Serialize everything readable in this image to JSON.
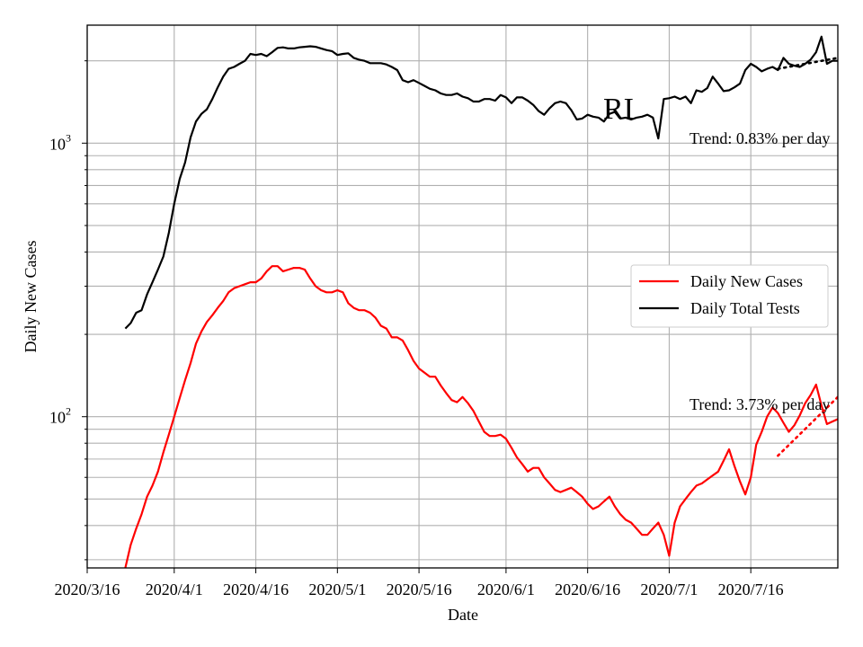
{
  "chart_data": {
    "type": "line",
    "title": "RI",
    "xlabel": "Date",
    "ylabel": "Daily New Cases",
    "yscale": "log",
    "ylim": [
      28,
      2700
    ],
    "xlim": [
      "2020-03-16",
      "2020-08-01"
    ],
    "x_ticks": [
      "2020/3/16",
      "2020/4/1",
      "2020/4/16",
      "2020/5/1",
      "2020/5/16",
      "2020/6/1",
      "2020/6/16",
      "2020/7/1",
      "2020/7/16"
    ],
    "y_ticks": [
      {
        "label": "10",
        "exp": "2",
        "value": 100
      },
      {
        "label": "10",
        "exp": "3",
        "value": 1000
      }
    ],
    "grid": true,
    "legend": {
      "placement": "center-right",
      "entries": [
        {
          "label": "Daily New Cases",
          "color": "#ff0000"
        },
        {
          "label": "Daily Total Tests",
          "color": "#000000"
        }
      ]
    },
    "annotations": [
      {
        "text": "Trend: 0.83% per day",
        "series": "Daily Total Tests"
      },
      {
        "text": "Trend: 3.73% per day",
        "series": "Daily New Cases"
      }
    ],
    "series": [
      {
        "name": "Daily New Cases",
        "color": "#ff0000",
        "x": [
          "2020-03-23",
          "2020-03-24",
          "2020-03-25",
          "2020-03-26",
          "2020-03-27",
          "2020-03-28",
          "2020-03-29",
          "2020-03-30",
          "2020-03-31",
          "2020-04-01",
          "2020-04-02",
          "2020-04-03",
          "2020-04-04",
          "2020-04-05",
          "2020-04-06",
          "2020-04-07",
          "2020-04-08",
          "2020-04-09",
          "2020-04-10",
          "2020-04-11",
          "2020-04-12",
          "2020-04-13",
          "2020-04-14",
          "2020-04-15",
          "2020-04-16",
          "2020-04-17",
          "2020-04-18",
          "2020-04-19",
          "2020-04-20",
          "2020-04-21",
          "2020-04-22",
          "2020-04-23",
          "2020-04-24",
          "2020-04-25",
          "2020-04-26",
          "2020-04-27",
          "2020-04-28",
          "2020-04-29",
          "2020-04-30",
          "2020-05-01",
          "2020-05-02",
          "2020-05-03",
          "2020-05-04",
          "2020-05-05",
          "2020-05-06",
          "2020-05-07",
          "2020-05-08",
          "2020-05-09",
          "2020-05-10",
          "2020-05-11",
          "2020-05-12",
          "2020-05-13",
          "2020-05-14",
          "2020-05-15",
          "2020-05-16",
          "2020-05-17",
          "2020-05-18",
          "2020-05-19",
          "2020-05-20",
          "2020-05-21",
          "2020-05-22",
          "2020-05-23",
          "2020-05-24",
          "2020-05-25",
          "2020-05-26",
          "2020-05-27",
          "2020-05-28",
          "2020-05-29",
          "2020-05-30",
          "2020-05-31",
          "2020-06-01",
          "2020-06-02",
          "2020-06-03",
          "2020-06-04",
          "2020-06-05",
          "2020-06-06",
          "2020-06-07",
          "2020-06-08",
          "2020-06-09",
          "2020-06-10",
          "2020-06-11",
          "2020-06-12",
          "2020-06-13",
          "2020-06-14",
          "2020-06-15",
          "2020-06-16",
          "2020-06-17",
          "2020-06-18",
          "2020-06-19",
          "2020-06-20",
          "2020-06-21",
          "2020-06-22",
          "2020-06-23",
          "2020-06-24",
          "2020-06-25",
          "2020-06-26",
          "2020-06-27",
          "2020-06-28",
          "2020-06-29",
          "2020-06-30",
          "2020-07-01",
          "2020-07-02",
          "2020-07-03",
          "2020-07-04",
          "2020-07-05",
          "2020-07-06",
          "2020-07-07",
          "2020-07-08",
          "2020-07-09",
          "2020-07-10",
          "2020-07-11",
          "2020-07-12",
          "2020-07-13",
          "2020-07-14",
          "2020-07-15",
          "2020-07-16",
          "2020-07-17",
          "2020-07-18",
          "2020-07-19",
          "2020-07-20",
          "2020-07-21",
          "2020-07-22",
          "2020-07-23",
          "2020-07-24",
          "2020-07-25",
          "2020-07-26",
          "2020-07-27",
          "2020-07-28",
          "2020-07-29",
          "2020-07-30",
          "2020-07-31",
          "2020-08-01"
        ],
        "y": [
          28,
          34,
          39,
          44,
          51,
          56,
          63,
          74,
          86,
          100,
          117,
          136,
          157,
          185,
          205,
          222,
          235,
          250,
          265,
          285,
          295,
          300,
          305,
          310,
          310,
          320,
          340,
          355,
          355,
          340,
          345,
          350,
          350,
          345,
          320,
          300,
          290,
          285,
          285,
          290,
          285,
          260,
          250,
          245,
          245,
          240,
          230,
          215,
          210,
          195,
          195,
          190,
          175,
          160,
          150,
          145,
          140,
          140,
          130,
          122,
          115,
          113,
          118,
          112,
          105,
          96,
          88,
          85,
          85,
          86,
          83,
          77,
          71,
          67,
          63,
          65,
          65,
          60,
          57,
          54,
          53,
          54,
          55,
          53,
          51,
          48,
          46,
          47,
          49,
          51,
          47,
          44,
          42,
          41,
          39,
          37,
          37,
          39,
          41,
          37,
          31,
          41,
          47,
          50,
          53,
          56,
          57,
          59,
          61,
          63,
          69,
          76,
          66,
          58,
          52,
          60,
          79,
          88,
          100,
          108,
          103,
          95,
          88,
          93,
          101,
          112,
          120,
          131,
          110,
          94,
          96,
          98
        ]
      },
      {
        "name": "Daily Total Tests",
        "color": "#000000",
        "x": [
          "2020-03-23",
          "2020-03-24",
          "2020-03-25",
          "2020-03-26",
          "2020-03-27",
          "2020-03-28",
          "2020-03-29",
          "2020-03-30",
          "2020-03-31",
          "2020-04-01",
          "2020-04-02",
          "2020-04-03",
          "2020-04-04",
          "2020-04-05",
          "2020-04-06",
          "2020-04-07",
          "2020-04-08",
          "2020-04-09",
          "2020-04-10",
          "2020-04-11",
          "2020-04-12",
          "2020-04-13",
          "2020-04-14",
          "2020-04-15",
          "2020-04-16",
          "2020-04-17",
          "2020-04-18",
          "2020-04-19",
          "2020-04-20",
          "2020-04-21",
          "2020-04-22",
          "2020-04-23",
          "2020-04-24",
          "2020-04-25",
          "2020-04-26",
          "2020-04-27",
          "2020-04-28",
          "2020-04-29",
          "2020-04-30",
          "2020-05-01",
          "2020-05-02",
          "2020-05-03",
          "2020-05-04",
          "2020-05-05",
          "2020-05-06",
          "2020-05-07",
          "2020-05-08",
          "2020-05-09",
          "2020-05-10",
          "2020-05-11",
          "2020-05-12",
          "2020-05-13",
          "2020-05-14",
          "2020-05-15",
          "2020-05-16",
          "2020-05-17",
          "2020-05-18",
          "2020-05-19",
          "2020-05-20",
          "2020-05-21",
          "2020-05-22",
          "2020-05-23",
          "2020-05-24",
          "2020-05-25",
          "2020-05-26",
          "2020-05-27",
          "2020-05-28",
          "2020-05-29",
          "2020-05-30",
          "2020-05-31",
          "2020-06-01",
          "2020-06-02",
          "2020-06-03",
          "2020-06-04",
          "2020-06-05",
          "2020-06-06",
          "2020-06-07",
          "2020-06-08",
          "2020-06-09",
          "2020-06-10",
          "2020-06-11",
          "2020-06-12",
          "2020-06-13",
          "2020-06-14",
          "2020-06-15",
          "2020-06-16",
          "2020-06-17",
          "2020-06-18",
          "2020-06-19",
          "2020-06-20",
          "2020-06-21",
          "2020-06-22",
          "2020-06-23",
          "2020-06-24",
          "2020-06-25",
          "2020-06-26",
          "2020-06-27",
          "2020-06-28",
          "2020-06-29",
          "2020-06-30",
          "2020-07-01",
          "2020-07-02",
          "2020-07-03",
          "2020-07-04",
          "2020-07-05",
          "2020-07-06",
          "2020-07-07",
          "2020-07-08",
          "2020-07-09",
          "2020-07-10",
          "2020-07-11",
          "2020-07-12",
          "2020-07-13",
          "2020-07-14",
          "2020-07-15",
          "2020-07-16",
          "2020-07-17",
          "2020-07-18",
          "2020-07-19",
          "2020-07-20",
          "2020-07-21",
          "2020-07-22",
          "2020-07-23",
          "2020-07-24",
          "2020-07-25",
          "2020-07-26",
          "2020-07-27",
          "2020-07-28",
          "2020-07-29",
          "2020-07-30",
          "2020-07-31",
          "2020-08-01"
        ],
        "y": [
          210,
          220,
          240,
          245,
          280,
          310,
          345,
          385,
          470,
          600,
          740,
          850,
          1050,
          1200,
          1280,
          1330,
          1450,
          1600,
          1750,
          1870,
          1900,
          1950,
          2000,
          2120,
          2100,
          2120,
          2080,
          2150,
          2230,
          2240,
          2220,
          2220,
          2240,
          2250,
          2260,
          2250,
          2220,
          2190,
          2170,
          2100,
          2120,
          2130,
          2050,
          2020,
          2000,
          1960,
          1960,
          1960,
          1940,
          1900,
          1850,
          1700,
          1670,
          1700,
          1660,
          1620,
          1580,
          1560,
          1520,
          1500,
          1500,
          1520,
          1480,
          1460,
          1420,
          1420,
          1450,
          1450,
          1430,
          1500,
          1470,
          1400,
          1470,
          1470,
          1430,
          1380,
          1310,
          1270,
          1340,
          1400,
          1420,
          1400,
          1320,
          1220,
          1230,
          1270,
          1250,
          1240,
          1200,
          1280,
          1300,
          1230,
          1240,
          1220,
          1240,
          1250,
          1270,
          1240,
          1040,
          1450,
          1460,
          1480,
          1450,
          1480,
          1400,
          1560,
          1540,
          1590,
          1750,
          1650,
          1550,
          1560,
          1600,
          1650,
          1850,
          1950,
          1900,
          1830,
          1870,
          1900,
          1850,
          2050,
          1950,
          1920,
          1900,
          1950,
          2020,
          2150,
          2450,
          1950,
          2000,
          2000
        ]
      },
      {
        "name": "",
        "style": "dotted",
        "color": "#000000",
        "x": [
          "2020-07-21",
          "2020-08-01"
        ],
        "y": [
          1870,
          2050
        ]
      },
      {
        "name": "",
        "style": "dotted",
        "color": "#ff0000",
        "x": [
          "2020-07-21",
          "2020-08-01"
        ],
        "y": [
          72,
          118
        ]
      }
    ]
  }
}
